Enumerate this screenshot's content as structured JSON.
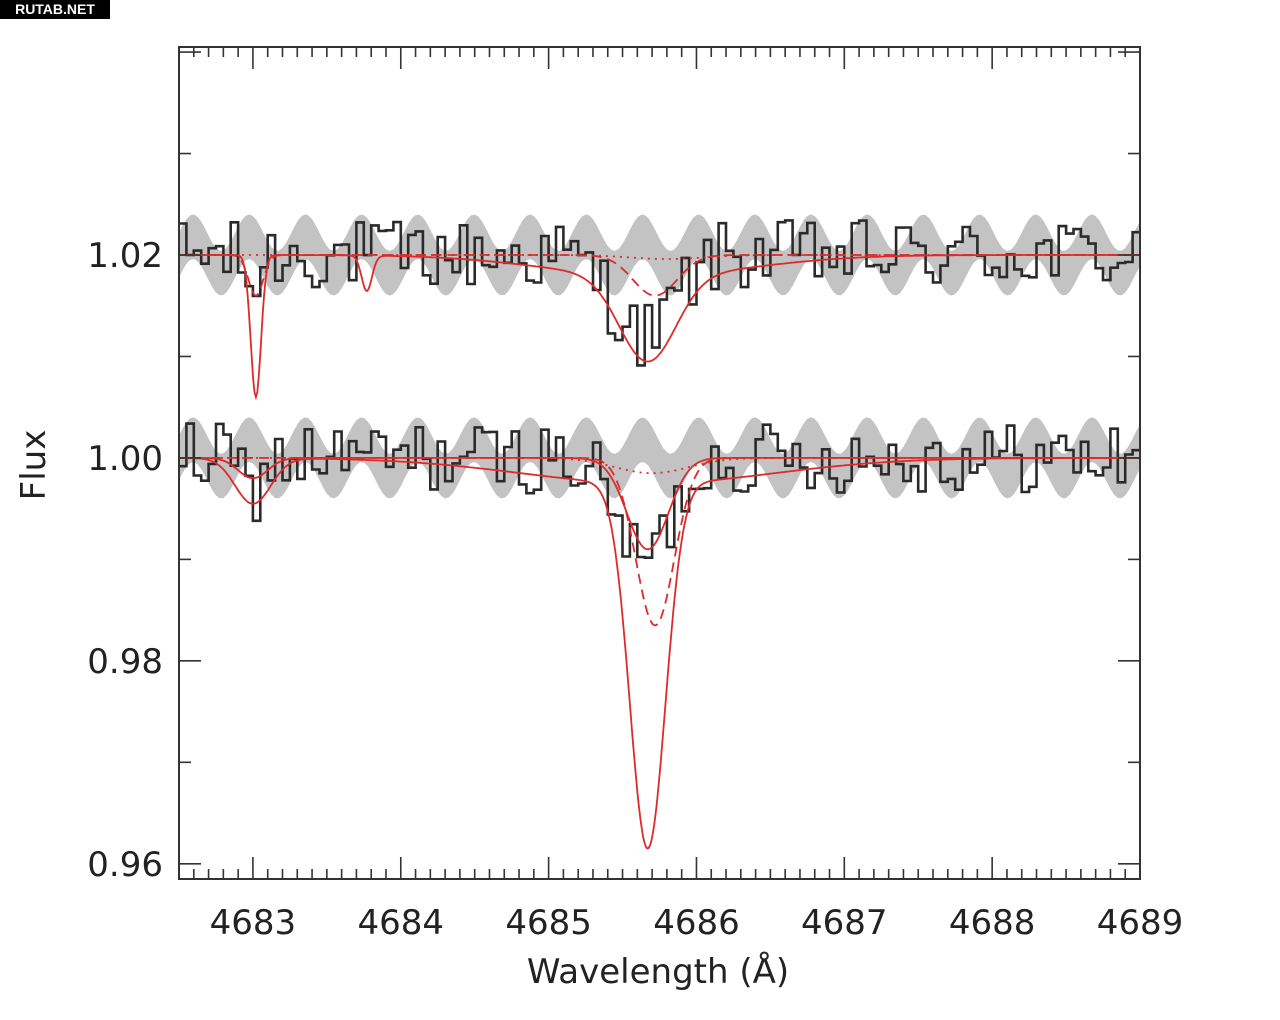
{
  "watermark": "RUTAB.NET",
  "chart_data": {
    "type": "line",
    "title": "",
    "xlabel": "Wavelength (Å)",
    "ylabel": "Flux",
    "xlim": [
      4682.5,
      4689.0
    ],
    "ylim": [
      0.9585,
      1.0405
    ],
    "x_ticks": [
      4683,
      4684,
      4685,
      4686,
      4687,
      4688,
      4689
    ],
    "x_tick_labels": [
      "4683",
      "4684",
      "4685",
      "4686",
      "4687",
      "4688",
      "4689"
    ],
    "y_ticks": [
      0.96,
      0.98,
      1.0,
      1.02
    ],
    "y_tick_labels": [
      "0.96",
      "0.98",
      "1.00",
      "1.02"
    ],
    "grid": false,
    "colors": {
      "observed": "#2a2a2a",
      "band": "#bdbdbd",
      "model": "#dd2a2a"
    },
    "series": [
      {
        "kind": "observed",
        "continuum": 1.02,
        "x_range": [
          4682.5,
          4689.0
        ],
        "points": 130,
        "noise_amplitude": 0.0035,
        "absorption_dips": [
          {
            "center": 4683.0,
            "depth": 0.003,
            "width": 0.05
          },
          {
            "center": 4685.65,
            "depth": 0.008,
            "width": 0.2
          }
        ]
      },
      {
        "kind": "band",
        "continuum": 1.02,
        "half_width": 0.0022,
        "wave_amplitude": 0.0018,
        "wave_period": 0.38
      },
      {
        "kind": "model",
        "style": "solid",
        "continuum": 1.02,
        "lines": [
          {
            "center": 4683.02,
            "depth": 0.014,
            "width": 0.035
          },
          {
            "center": 4683.77,
            "depth": 0.0035,
            "width": 0.035
          },
          {
            "center": 4685.67,
            "depth": 0.0085,
            "width": 0.19,
            "wing_depth": 0.002,
            "wing_width": 0.7
          }
        ]
      },
      {
        "kind": "model",
        "style": "dashed",
        "continuum": 1.02,
        "lines": [
          {
            "center": 4683.02,
            "depth": 0.004,
            "width": 0.05
          },
          {
            "center": 4685.72,
            "depth": 0.004,
            "width": 0.15
          }
        ]
      },
      {
        "kind": "model",
        "style": "dotted",
        "continuum": 1.02,
        "lines": [
          {
            "center": 4685.8,
            "depth": 0.0004,
            "width": 0.25
          }
        ]
      },
      {
        "kind": "observed",
        "continuum": 1.0,
        "x_range": [
          4682.5,
          4689.0
        ],
        "points": 130,
        "noise_amplitude": 0.0035,
        "absorption_dips": [
          {
            "center": 4683.0,
            "depth": 0.003,
            "width": 0.08
          },
          {
            "center": 4685.65,
            "depth": 0.01,
            "width": 0.18
          }
        ]
      },
      {
        "kind": "band",
        "continuum": 1.0,
        "half_width": 0.0022,
        "wave_amplitude": 0.0018,
        "wave_period": 0.38
      },
      {
        "kind": "model",
        "style": "solid",
        "continuum": 1.0,
        "lines": [
          {
            "center": 4683.0,
            "depth": 0.0045,
            "width": 0.12
          },
          {
            "center": 4685.67,
            "depth": 0.036,
            "width": 0.12,
            "wing_depth": 0.0025,
            "wing_width": 0.85
          }
        ]
      },
      {
        "kind": "model",
        "style": "solid",
        "continuum": 1.0,
        "lines": [
          {
            "center": 4683.0,
            "depth": 0.002,
            "width": 0.1
          },
          {
            "center": 4685.67,
            "depth": 0.009,
            "width": 0.14
          }
        ]
      },
      {
        "kind": "model",
        "style": "dashed",
        "continuum": 1.0,
        "lines": [
          {
            "center": 4685.72,
            "depth": 0.0165,
            "width": 0.13
          }
        ]
      },
      {
        "kind": "model",
        "style": "dotted",
        "continuum": 1.0,
        "lines": [
          {
            "center": 4685.7,
            "depth": 0.0015,
            "width": 0.25
          }
        ]
      }
    ]
  }
}
